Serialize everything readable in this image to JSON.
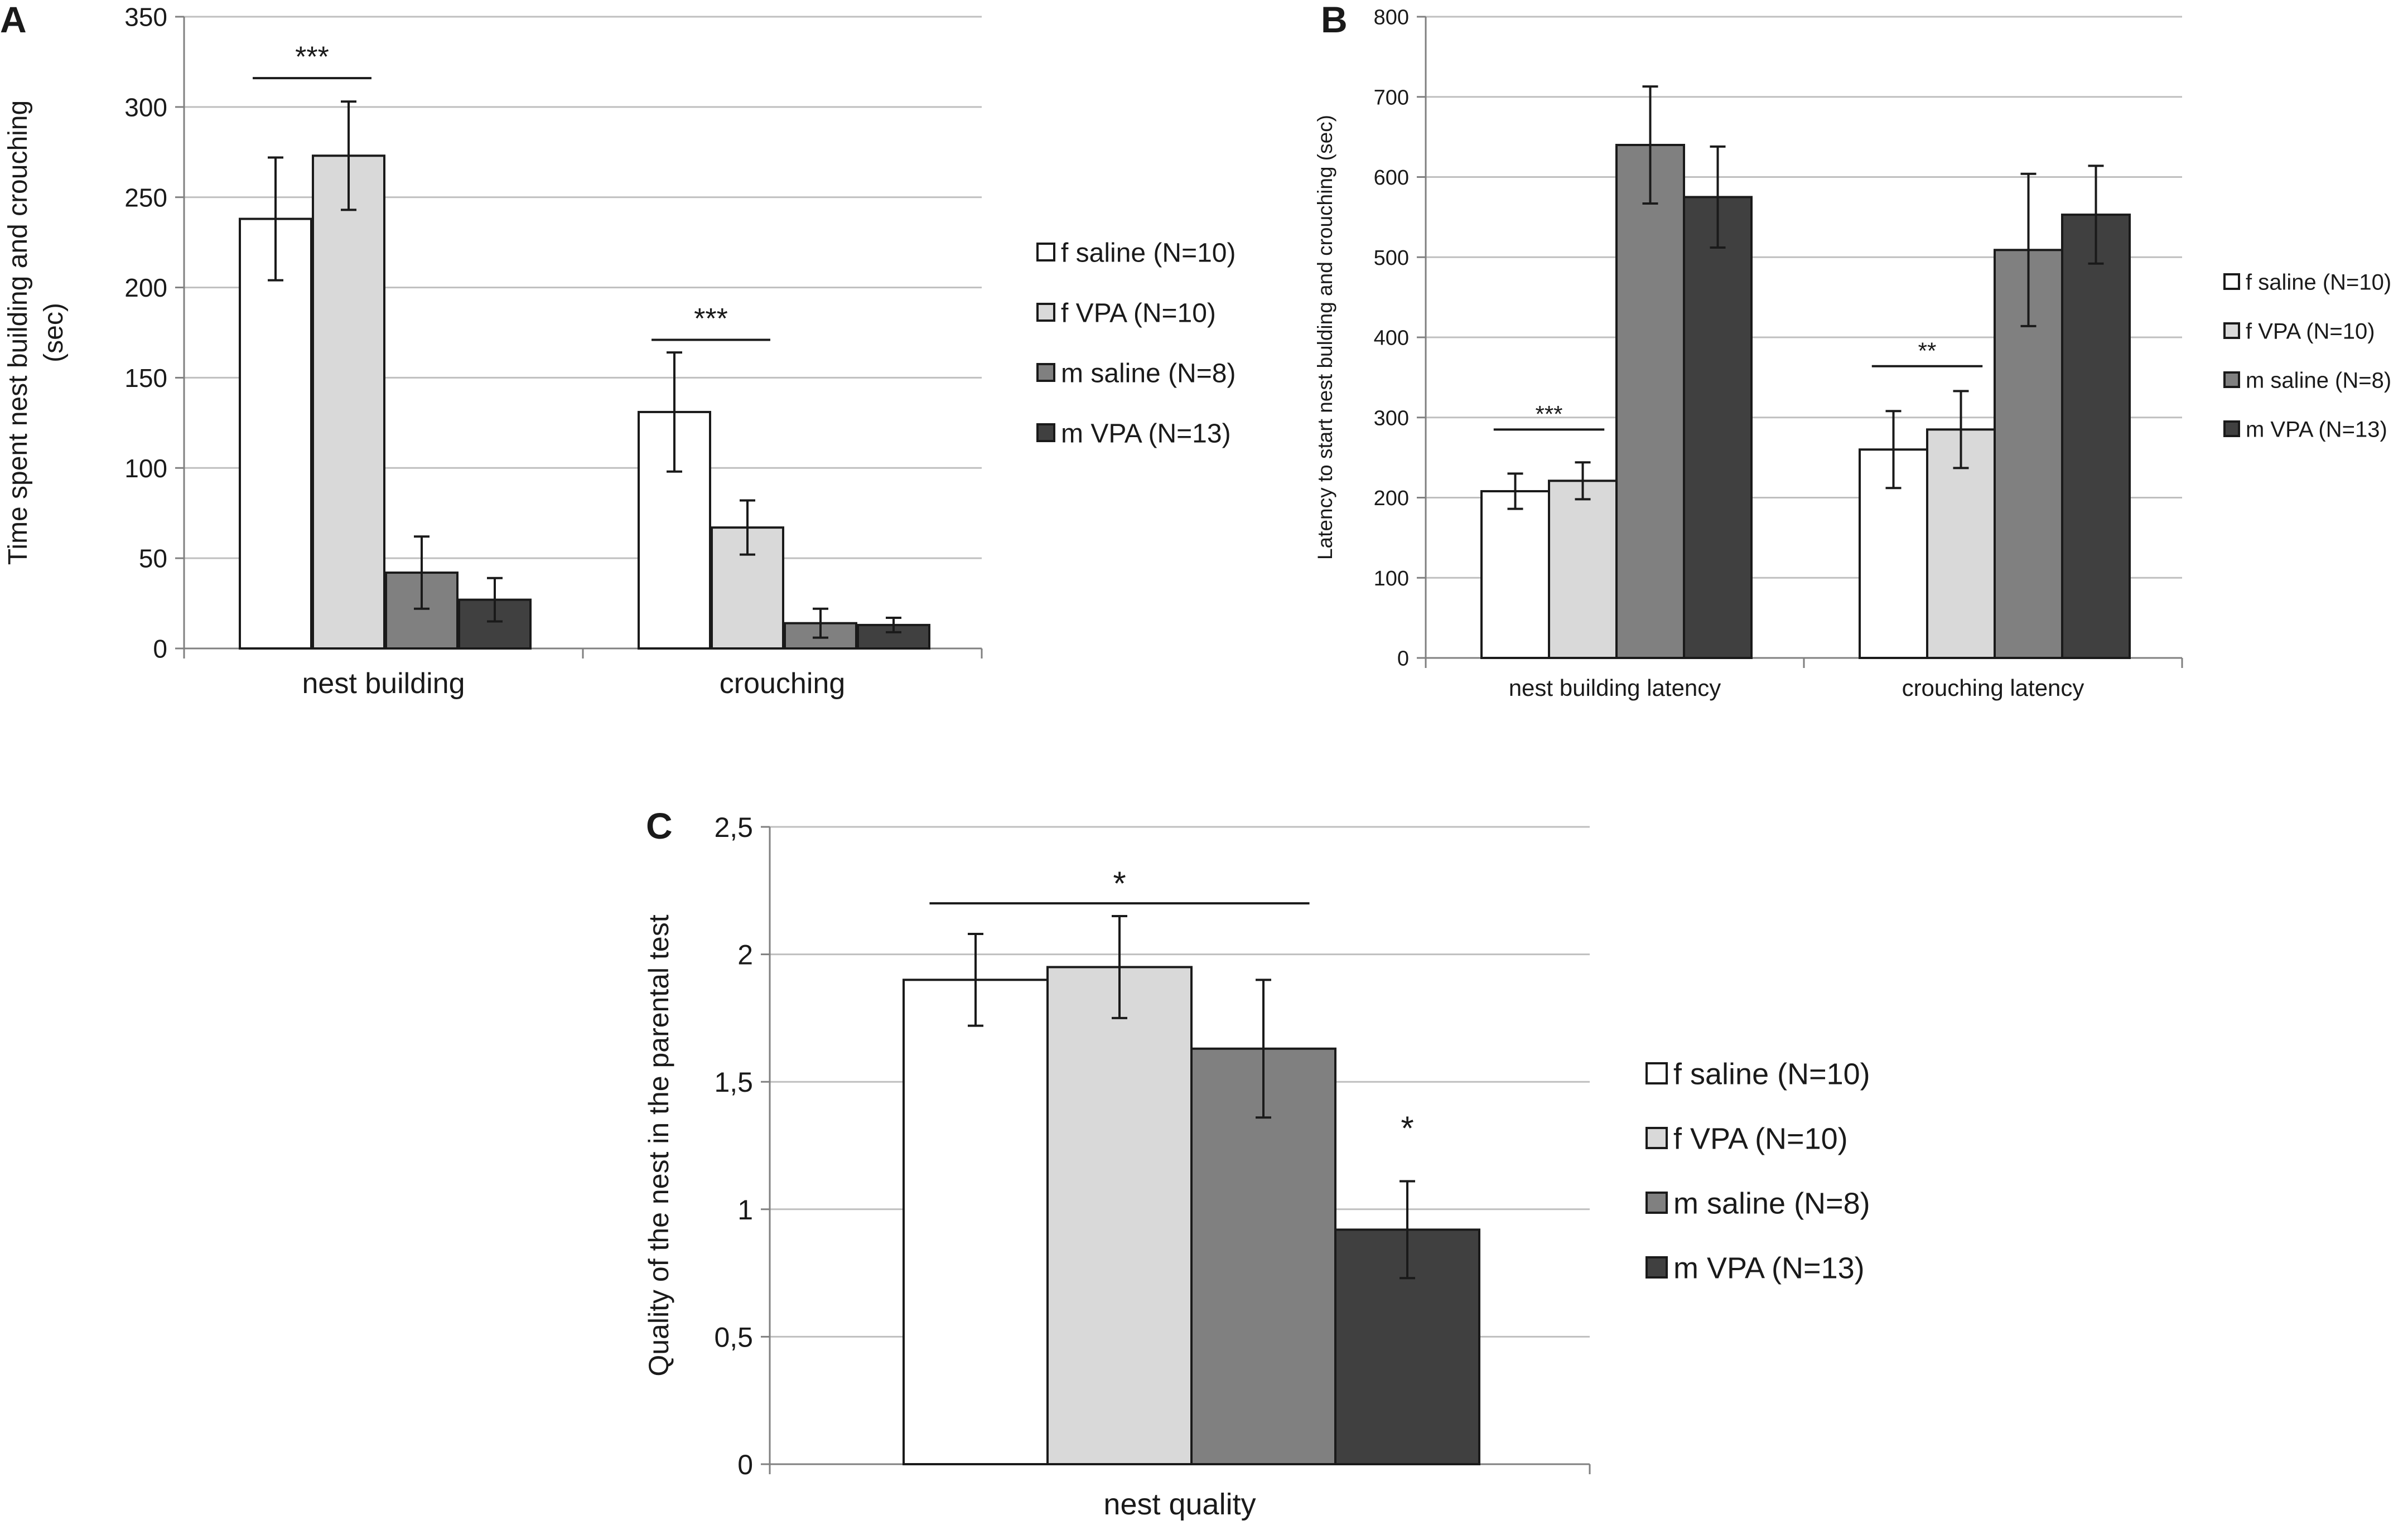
{
  "figure": {
    "colors": {
      "f_saline": "#ffffff",
      "f_vpa": "#d9d9d9",
      "m_saline": "#808080",
      "m_vpa": "#404040",
      "grid": "#bfbfbf",
      "axis": "#808080",
      "bar_edge": "#1a1a1a",
      "text": "#1a1a1a"
    }
  },
  "chart_data": [
    {
      "panel": "A",
      "type": "bar",
      "title": "",
      "categories": [
        "nest building",
        "crouching"
      ],
      "ylabel_lines": [
        "Time spent nest building and crouching",
        "(sec)"
      ],
      "xlabel": "",
      "ylim": [
        0,
        350
      ],
      "yticks": [
        0,
        50,
        100,
        150,
        200,
        250,
        300,
        350
      ],
      "ytick_labels": [
        "0",
        "50",
        "100",
        "150",
        "200",
        "250",
        "300",
        "350"
      ],
      "grid": true,
      "legend_position": "right",
      "series": [
        {
          "key": "f_saline",
          "name": "f saline (N=10)",
          "values": [
            238,
            131
          ],
          "errors": [
            34,
            33
          ]
        },
        {
          "key": "f_vpa",
          "name": "f VPA    (N=10)",
          "values": [
            273,
            67
          ],
          "errors": [
            30,
            15
          ]
        },
        {
          "key": "m_saline",
          "name": "m saline (N=8)",
          "values": [
            42,
            14
          ],
          "errors": [
            20,
            8
          ]
        },
        {
          "key": "m_vpa",
          "name": "m VPA (N=13)",
          "values": [
            27,
            13
          ],
          "errors": [
            12,
            4
          ]
        }
      ],
      "annotations": [
        {
          "label": "***",
          "category": 0,
          "from_series": 0,
          "to_series": 1,
          "y": 316
        },
        {
          "label": "***",
          "category": 1,
          "from_series": 0,
          "to_series": 1,
          "y": 171
        }
      ]
    },
    {
      "panel": "B",
      "type": "bar",
      "title": "",
      "categories": [
        "nest building latency",
        "crouching latency"
      ],
      "ylabel_lines": [
        "Latency to start nest bulding and crouching (sec)"
      ],
      "xlabel": "",
      "ylim": [
        0,
        800
      ],
      "yticks": [
        0,
        100,
        200,
        300,
        400,
        500,
        600,
        700,
        800
      ],
      "ytick_labels": [
        "0",
        "100",
        "200",
        "300",
        "400",
        "500",
        "600",
        "700",
        "800"
      ],
      "grid": true,
      "legend_position": "right",
      "series": [
        {
          "key": "f_saline",
          "name": "f saline (N=10)",
          "values": [
            208,
            260
          ],
          "errors": [
            22,
            48
          ]
        },
        {
          "key": "f_vpa",
          "name": "f VPA    (N=10)",
          "values": [
            221,
            285
          ],
          "errors": [
            23,
            48
          ]
        },
        {
          "key": "m_saline",
          "name": "m saline (N=8)",
          "values": [
            640,
            509
          ],
          "errors": [
            73,
            95
          ]
        },
        {
          "key": "m_vpa",
          "name": "m VPA (N=13)",
          "values": [
            575,
            553
          ],
          "errors": [
            63,
            61
          ]
        }
      ],
      "annotations": [
        {
          "label": "***",
          "category": 0,
          "from_series": 0,
          "to_series": 1,
          "y": 285
        },
        {
          "label": "**",
          "category": 1,
          "from_series": 0,
          "to_series": 1,
          "y": 364
        }
      ]
    },
    {
      "panel": "C",
      "type": "bar",
      "title": "",
      "categories": [
        "nest quality"
      ],
      "ylabel_lines": [
        "Quality of the nest in the parental test"
      ],
      "xlabel": "",
      "ylim": [
        0,
        2.5
      ],
      "yticks": [
        0,
        0.5,
        1,
        1.5,
        2,
        2.5
      ],
      "ytick_labels": [
        "0",
        "0,5",
        "1",
        "1,5",
        "2",
        "2,5"
      ],
      "grid": true,
      "legend_position": "right",
      "series": [
        {
          "key": "f_saline",
          "name": "f saline (N=10)",
          "values": [
            1.9
          ],
          "errors": [
            0.18
          ]
        },
        {
          "key": "f_vpa",
          "name": "f VPA    (N=10)",
          "values": [
            1.95
          ],
          "errors": [
            0.2
          ]
        },
        {
          "key": "m_saline",
          "name": "m saline (N=8)",
          "values": [
            1.63
          ],
          "errors": [
            0.27
          ]
        },
        {
          "key": "m_vpa",
          "name": "m VPA (N=13)",
          "values": [
            0.92
          ],
          "errors": [
            0.19
          ]
        }
      ],
      "annotations": [
        {
          "label": "*",
          "category": 0,
          "from_series": 0,
          "to_series": 2,
          "y": 2.2
        },
        {
          "label": "*",
          "category": 0,
          "from_series": 3,
          "to_series": 3,
          "y": 1.24
        }
      ]
    }
  ]
}
